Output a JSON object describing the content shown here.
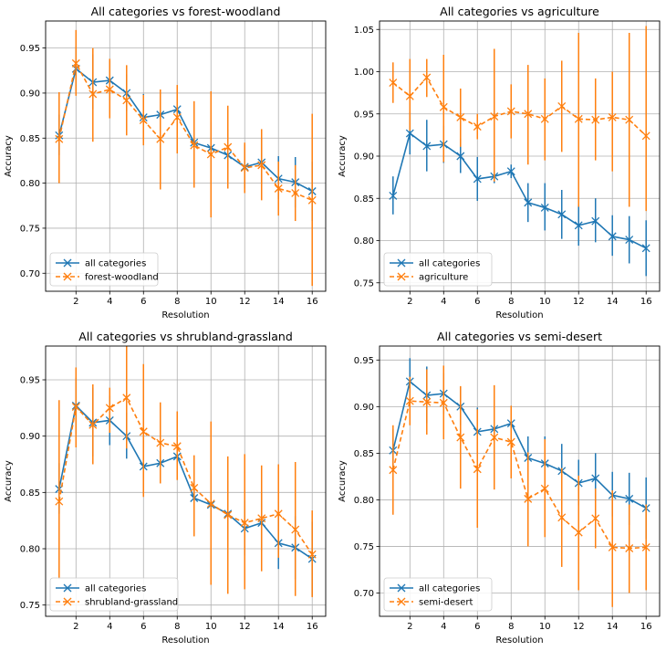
{
  "chart_data": [
    {
      "type": "line",
      "title": "All categories vs forest-woodland",
      "xlabel": "Resolution",
      "ylabel": "Accuracy",
      "x": [
        1,
        2,
        3,
        4,
        5,
        6,
        7,
        8,
        9,
        10,
        11,
        12,
        13,
        14,
        15,
        16
      ],
      "xticks": [
        2,
        4,
        6,
        8,
        10,
        12,
        14,
        16
      ],
      "yticks": [
        0.7,
        0.75,
        0.8,
        0.85,
        0.9,
        0.95
      ],
      "ytick_labels": [
        "0.70",
        "0.75",
        "0.80",
        "0.85",
        "0.90",
        "0.95"
      ],
      "ylim": [
        0.68,
        0.98
      ],
      "grid": true,
      "legend_position": "lower-left",
      "series": [
        {
          "name": "all categories",
          "color": "#1f77b4",
          "linestyle": "solid",
          "values": [
            0.853,
            0.927,
            0.912,
            0.914,
            0.9,
            0.873,
            0.876,
            0.882,
            0.845,
            0.839,
            0.831,
            0.818,
            0.823,
            0.805,
            0.801,
            0.791
          ],
          "err_low": [
            0.831,
            0.902,
            0.882,
            0.892,
            0.88,
            0.847,
            0.868,
            0.874,
            0.822,
            0.812,
            0.802,
            0.794,
            0.798,
            0.782,
            0.773,
            0.758
          ],
          "err_high": [
            0.876,
            0.952,
            0.943,
            0.936,
            0.921,
            0.899,
            0.884,
            0.89,
            0.868,
            0.868,
            0.86,
            0.843,
            0.85,
            0.83,
            0.829,
            0.824
          ]
        },
        {
          "name": "forest-woodland",
          "color": "#ff7f0e",
          "linestyle": "dashed",
          "values": [
            0.849,
            0.933,
            0.899,
            0.904,
            0.892,
            0.87,
            0.849,
            0.873,
            0.842,
            0.832,
            0.84,
            0.817,
            0.82,
            0.794,
            0.789,
            0.781
          ],
          "err_low": [
            0.8,
            0.897,
            0.846,
            0.872,
            0.853,
            0.842,
            0.793,
            0.833,
            0.795,
            0.762,
            0.794,
            0.789,
            0.781,
            0.764,
            0.758,
            0.686
          ],
          "err_high": [
            0.901,
            0.97,
            0.95,
            0.938,
            0.931,
            0.898,
            0.904,
            0.909,
            0.891,
            0.902,
            0.886,
            0.845,
            0.86,
            0.824,
            0.82,
            0.877
          ]
        }
      ]
    },
    {
      "type": "line",
      "title": "All categories vs agriculture",
      "xlabel": "Resolution",
      "ylabel": "Accuracy",
      "x": [
        1,
        2,
        3,
        4,
        5,
        6,
        7,
        8,
        9,
        10,
        11,
        12,
        13,
        14,
        15,
        16
      ],
      "xticks": [
        2,
        4,
        6,
        8,
        10,
        12,
        14,
        16
      ],
      "yticks": [
        0.75,
        0.8,
        0.85,
        0.9,
        0.95,
        1.0,
        1.05
      ],
      "ytick_labels": [
        "0.75",
        "0.80",
        "0.85",
        "0.90",
        "0.95",
        "1.00",
        "1.05"
      ],
      "ylim": [
        0.74,
        1.06
      ],
      "grid": true,
      "legend_position": "lower-left",
      "series": [
        {
          "name": "all categories",
          "color": "#1f77b4",
          "linestyle": "solid",
          "values": [
            0.853,
            0.927,
            0.912,
            0.914,
            0.9,
            0.873,
            0.876,
            0.882,
            0.845,
            0.839,
            0.831,
            0.818,
            0.823,
            0.805,
            0.801,
            0.791
          ],
          "err_low": [
            0.831,
            0.902,
            0.882,
            0.892,
            0.88,
            0.847,
            0.868,
            0.874,
            0.822,
            0.812,
            0.802,
            0.794,
            0.798,
            0.782,
            0.773,
            0.758
          ],
          "err_high": [
            0.876,
            0.952,
            0.943,
            0.936,
            0.921,
            0.899,
            0.884,
            0.89,
            0.868,
            0.868,
            0.86,
            0.843,
            0.85,
            0.83,
            0.829,
            0.824
          ]
        },
        {
          "name": "agriculture",
          "color": "#ff7f0e",
          "linestyle": "dashed",
          "values": [
            0.987,
            0.971,
            0.993,
            0.958,
            0.946,
            0.935,
            0.947,
            0.953,
            0.95,
            0.944,
            0.959,
            0.944,
            0.943,
            0.946,
            0.943,
            0.924
          ],
          "err_low": [
            0.963,
            0.93,
            0.97,
            0.893,
            0.911,
            0.92,
            0.87,
            0.921,
            0.89,
            0.895,
            0.905,
            0.84,
            0.895,
            0.882,
            0.84,
            0.835
          ],
          "err_high": [
            1.011,
            1.015,
            1.015,
            1.02,
            0.98,
            0.95,
            1.027,
            0.985,
            1.008,
            0.992,
            1.013,
            1.046,
            0.992,
            1.0,
            1.046,
            1.054
          ]
        }
      ]
    },
    {
      "type": "line",
      "title": "All categories vs shrubland-grassland",
      "xlabel": "Resolution",
      "ylabel": "Accuracy",
      "x": [
        1,
        2,
        3,
        4,
        5,
        6,
        7,
        8,
        9,
        10,
        11,
        12,
        13,
        14,
        15,
        16
      ],
      "xticks": [
        2,
        4,
        6,
        8,
        10,
        12,
        14,
        16
      ],
      "yticks": [
        0.75,
        0.8,
        0.85,
        0.9,
        0.95
      ],
      "ytick_labels": [
        "0.75",
        "0.80",
        "0.85",
        "0.90",
        "0.95"
      ],
      "ylim": [
        0.74,
        0.98
      ],
      "grid": true,
      "legend_position": "lower-left",
      "series": [
        {
          "name": "all categories",
          "color": "#1f77b4",
          "linestyle": "solid",
          "values": [
            0.853,
            0.927,
            0.912,
            0.914,
            0.9,
            0.873,
            0.876,
            0.882,
            0.845,
            0.839,
            0.831,
            0.818,
            0.823,
            0.805,
            0.801,
            0.791
          ],
          "err_low": [
            0.831,
            0.902,
            0.882,
            0.892,
            0.88,
            0.847,
            0.868,
            0.874,
            0.822,
            0.812,
            0.802,
            0.794,
            0.798,
            0.782,
            0.773,
            0.758
          ],
          "err_high": [
            0.876,
            0.952,
            0.943,
            0.936,
            0.921,
            0.899,
            0.884,
            0.89,
            0.868,
            0.868,
            0.86,
            0.843,
            0.85,
            0.83,
            0.829,
            0.824
          ]
        },
        {
          "name": "shrubland-grassland",
          "color": "#ff7f0e",
          "linestyle": "dashed",
          "values": [
            0.842,
            0.926,
            0.91,
            0.925,
            0.934,
            0.904,
            0.894,
            0.891,
            0.854,
            0.84,
            0.83,
            0.823,
            0.827,
            0.831,
            0.817,
            0.795
          ],
          "err_low": [
            0.773,
            0.89,
            0.875,
            0.903,
            0.889,
            0.846,
            0.858,
            0.861,
            0.811,
            0.768,
            0.76,
            0.764,
            0.78,
            0.792,
            0.758,
            0.757
          ],
          "err_high": [
            0.932,
            0.961,
            0.946,
            0.943,
            0.98,
            0.964,
            0.93,
            0.922,
            0.883,
            0.913,
            0.882,
            0.884,
            0.874,
            0.875,
            0.877,
            0.834
          ]
        }
      ]
    },
    {
      "type": "line",
      "title": "All categories vs semi-desert",
      "xlabel": "Resolution",
      "ylabel": "Accuracy",
      "x": [
        1,
        2,
        3,
        4,
        5,
        6,
        7,
        8,
        9,
        10,
        11,
        12,
        13,
        14,
        15,
        16
      ],
      "xticks": [
        2,
        4,
        6,
        8,
        10,
        12,
        14,
        16
      ],
      "yticks": [
        0.7,
        0.75,
        0.8,
        0.85,
        0.9,
        0.95
      ],
      "ytick_labels": [
        "0.70",
        "0.75",
        "0.80",
        "0.85",
        "0.90",
        "0.95"
      ],
      "ylim": [
        0.675,
        0.965
      ],
      "grid": true,
      "legend_position": "lower-left",
      "series": [
        {
          "name": "all categories",
          "color": "#1f77b4",
          "linestyle": "solid",
          "values": [
            0.853,
            0.927,
            0.912,
            0.914,
            0.9,
            0.873,
            0.876,
            0.882,
            0.845,
            0.839,
            0.831,
            0.818,
            0.823,
            0.805,
            0.801,
            0.791
          ],
          "err_low": [
            0.831,
            0.902,
            0.882,
            0.892,
            0.88,
            0.847,
            0.868,
            0.874,
            0.822,
            0.812,
            0.802,
            0.794,
            0.798,
            0.782,
            0.773,
            0.758
          ],
          "err_high": [
            0.876,
            0.952,
            0.943,
            0.936,
            0.921,
            0.899,
            0.884,
            0.89,
            0.868,
            0.868,
            0.86,
            0.843,
            0.85,
            0.83,
            0.829,
            0.824
          ]
        },
        {
          "name": "semi-desert",
          "color": "#ff7f0e",
          "linestyle": "dashed",
          "values": [
            0.832,
            0.906,
            0.905,
            0.904,
            0.867,
            0.833,
            0.867,
            0.862,
            0.801,
            0.812,
            0.781,
            0.765,
            0.78,
            0.749,
            0.748,
            0.749
          ],
          "err_low": [
            0.784,
            0.88,
            0.87,
            0.865,
            0.812,
            0.77,
            0.811,
            0.823,
            0.75,
            0.76,
            0.728,
            0.703,
            0.748,
            0.685,
            0.7,
            0.703
          ],
          "err_high": [
            0.88,
            0.932,
            0.94,
            0.944,
            0.922,
            0.897,
            0.923,
            0.901,
            0.851,
            0.865,
            0.834,
            0.826,
            0.812,
            0.81,
            0.795,
            0.795
          ]
        }
      ]
    }
  ]
}
